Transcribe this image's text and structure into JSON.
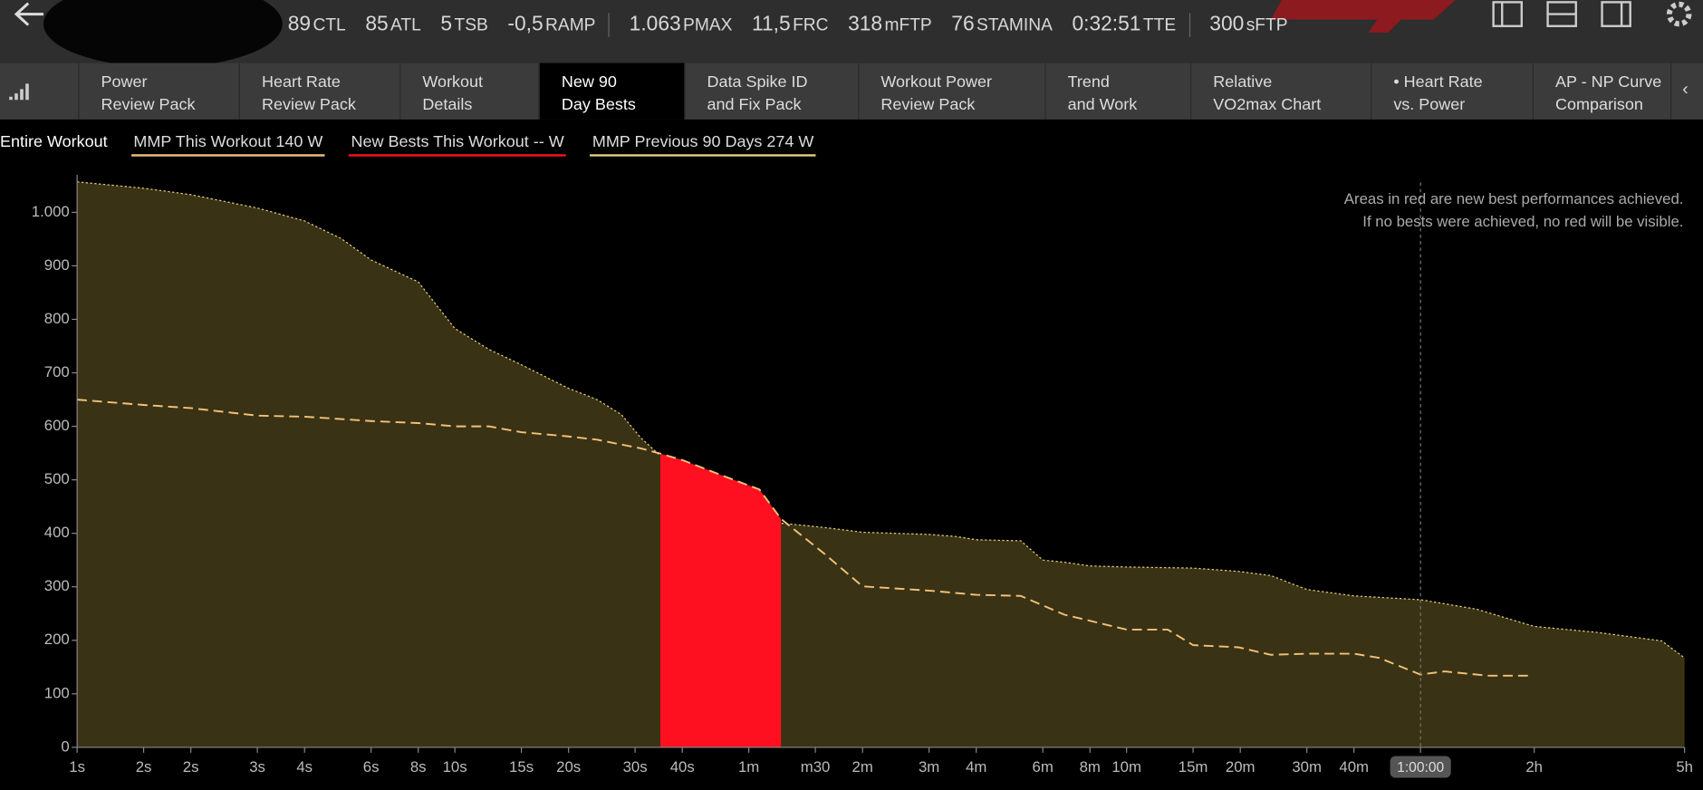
{
  "toolbar": {
    "metrics": [
      {
        "value": "89",
        "unit": "CTL"
      },
      {
        "value": "85",
        "unit": "ATL"
      },
      {
        "value": "5",
        "unit": "TSB"
      },
      {
        "value": "-0,5",
        "unit": "RAMP"
      },
      {
        "value": "1.063",
        "unit": "PMAX"
      },
      {
        "value": "11,5",
        "unit": "FRC"
      },
      {
        "value": "318",
        "unit": "mFTP"
      },
      {
        "value": "76",
        "unit": "STAMINA"
      },
      {
        "value": "0:32:51",
        "unit": "TTE"
      },
      {
        "value": "300",
        "unit": "sFTP"
      }
    ]
  },
  "tabs": [
    [
      "Power",
      "Review Pack"
    ],
    [
      "Heart Rate",
      "Review Pack"
    ],
    [
      "Workout",
      "Details"
    ],
    [
      "New 90",
      "Day Bests"
    ],
    [
      "Data Spike ID",
      "and Fix Pack"
    ],
    [
      "Workout Power",
      "Review Pack"
    ],
    [
      "Trend",
      "and Work"
    ],
    [
      "Relative",
      "VO2max Chart"
    ],
    [
      "• Heart Rate",
      "vs. Power"
    ],
    [
      "AP - NP Curve",
      "Comparison"
    ]
  ],
  "selected_tab": 3,
  "range_label": "Entire Workout",
  "chart_data": {
    "type": "line",
    "annotation": [
      "Areas in red are new best performances achieved.",
      "If no bests were achieved, no red will be visible."
    ],
    "xscale": "log",
    "xlim": [
      1,
      18000
    ],
    "ylim": [
      0,
      1070
    ],
    "yticks": [
      0,
      100,
      200,
      300,
      400,
      500,
      600,
      700,
      800,
      900,
      {
        "value": 1000,
        "label": "1.000"
      }
    ],
    "xticks": [
      {
        "value": 1,
        "label": "1s"
      },
      {
        "value": 1.5,
        "label": "2s"
      },
      {
        "value": 2,
        "label": "2s"
      },
      {
        "value": 3,
        "label": "3s"
      },
      {
        "value": 4,
        "label": "4s"
      },
      {
        "value": 6,
        "label": "6s"
      },
      {
        "value": 8,
        "label": "8s"
      },
      {
        "value": 10,
        "label": "10s"
      },
      {
        "value": 15,
        "label": "15s"
      },
      {
        "value": 20,
        "label": "20s"
      },
      {
        "value": 30,
        "label": "30s"
      },
      {
        "value": 40,
        "label": "40s"
      },
      {
        "value": 60,
        "label": "1m"
      },
      {
        "value": 90,
        "label": "m30"
      },
      {
        "value": 120,
        "label": "2m"
      },
      {
        "value": 180,
        "label": "3m"
      },
      {
        "value": 240,
        "label": "4m"
      },
      {
        "value": 360,
        "label": "6m"
      },
      {
        "value": 480,
        "label": "8m"
      },
      {
        "value": 600,
        "label": "10m"
      },
      {
        "value": 900,
        "label": "15m"
      },
      {
        "value": 1200,
        "label": "20m"
      },
      {
        "value": 1800,
        "label": "30m"
      },
      {
        "value": 2400,
        "label": "40m"
      },
      {
        "value": 3600,
        "label": "1:00:00"
      },
      {
        "value": 7200,
        "label": "2h"
      },
      {
        "value": 18000,
        "label": "5h"
      }
    ],
    "highlight_tick": 24,
    "series": [
      {
        "name": "MMP This Workout  140 W",
        "type": "line",
        "color": "#f2c27a",
        "x": [
          1,
          1.5,
          2,
          3,
          4,
          6,
          8,
          10,
          12.3,
          15,
          20,
          23.8,
          31,
          35,
          40,
          52,
          64,
          73,
          95,
          120,
          180,
          240,
          315,
          411,
          600,
          771,
          900,
          1185,
          1446,
          1800,
          2400,
          2800,
          3600,
          4170,
          5430,
          7000
        ],
        "values": [
          650,
          640,
          634,
          620,
          618,
          610,
          606,
          600,
          600,
          589,
          581,
          575,
          559,
          549,
          537,
          506,
          482,
          427,
          362,
          301,
          293,
          285,
          283,
          248,
          220,
          220,
          191,
          187,
          173,
          175,
          175,
          167,
          136,
          142,
          134,
          134
        ]
      },
      {
        "name": "New Bests This Workout  -- W",
        "type": "area",
        "color": "#ff1020",
        "x": [
          35,
          40,
          52,
          64,
          73
        ],
        "values": [
          549,
          537,
          506,
          482,
          427
        ]
      },
      {
        "name": "MMP Previous 90 Days  274 W",
        "type": "area",
        "color": "#e3cf7e",
        "fill": "#3a3214",
        "x": [
          1,
          1.5,
          2,
          3,
          4,
          5,
          6,
          8,
          10,
          12.3,
          15,
          20,
          23.8,
          27.6,
          31,
          35,
          40,
          52,
          73,
          95,
          120,
          180,
          212,
          240,
          315,
          360,
          411,
          480,
          600,
          900,
          1185,
          1446,
          1800,
          2400,
          3600,
          5080,
          7200,
          10530,
          15660,
          18000
        ],
        "values": [
          1057,
          1045,
          1033,
          1008,
          984,
          951,
          911,
          870,
          783,
          744,
          715,
          671,
          650,
          622,
          579,
          545,
          520,
          427,
          419,
          411,
          402,
          398,
          394,
          388,
          386,
          350,
          346,
          339,
          337,
          335,
          329,
          321,
          295,
          283,
          276,
          258,
          226,
          215,
          199,
          167
        ]
      }
    ]
  }
}
